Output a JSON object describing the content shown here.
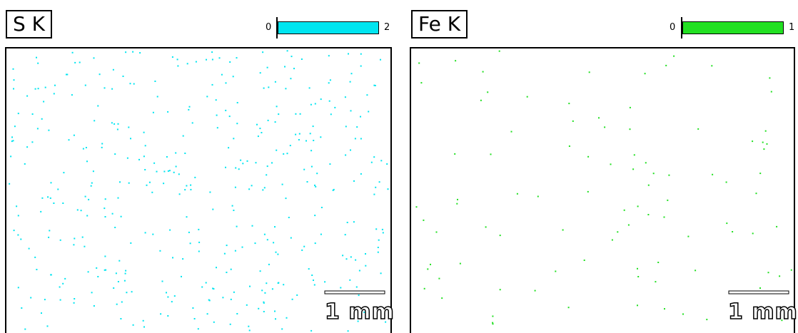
{
  "panels": [
    {
      "label": "S K",
      "scale_min": 0,
      "scale_max": 2,
      "color": "#00e5f0",
      "scale_bar": "1 mm"
    },
    {
      "label": "Fe K",
      "scale_min": 0,
      "scale_max": 1,
      "color": "#22e022",
      "scale_bar": "1 mm"
    }
  ]
}
